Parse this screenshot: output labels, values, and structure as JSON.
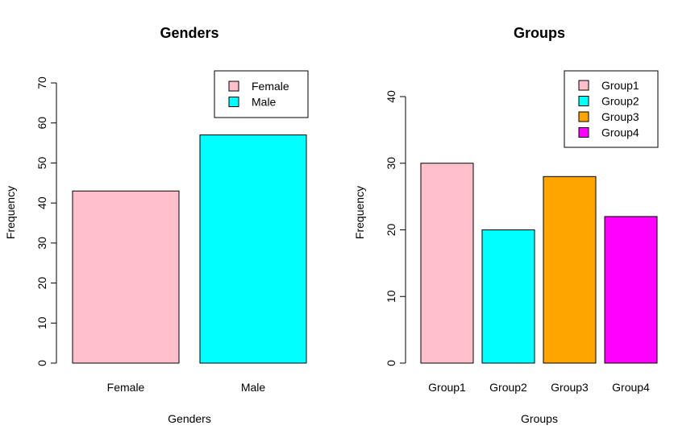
{
  "chart_data": [
    {
      "type": "bar",
      "title": "Genders",
      "xlabel": "Genders",
      "ylabel": "Frequency",
      "categories": [
        "Female",
        "Male"
      ],
      "values": [
        43,
        57
      ],
      "colors": [
        "#FFC0CB",
        "#00FFFF"
      ],
      "ylim": [
        0,
        70
      ],
      "yticks": [
        0,
        10,
        20,
        30,
        40,
        50,
        60,
        70
      ],
      "legend": {
        "position": "top-right",
        "entries": [
          "Female",
          "Male"
        ]
      },
      "grid": false
    },
    {
      "type": "bar",
      "title": "Groups",
      "xlabel": "Groups",
      "ylabel": "Frequency",
      "categories": [
        "Group1",
        "Group2",
        "Group3",
        "Group4"
      ],
      "values": [
        30,
        20,
        28,
        22
      ],
      "colors": [
        "#FFC0CB",
        "#00FFFF",
        "#FFA500",
        "#FF00FF"
      ],
      "ylim": [
        0,
        40
      ],
      "yticks": [
        0,
        10,
        20,
        30,
        40
      ],
      "legend": {
        "position": "top-right",
        "entries": [
          "Group1",
          "Group2",
          "Group3",
          "Group4"
        ]
      },
      "grid": false
    }
  ]
}
